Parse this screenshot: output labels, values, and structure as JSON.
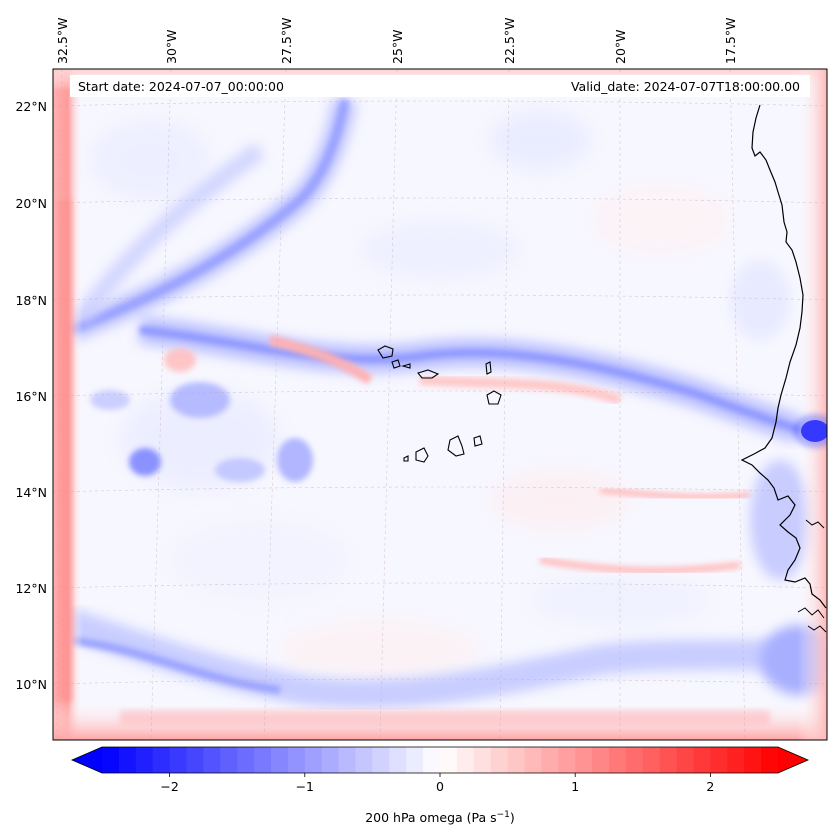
{
  "map": {
    "start_date": "Start date: 2024-07-07_00:00:00",
    "valid_date": "Valid_date: 2024-07-07T18:00:00.00",
    "lon_labels": [
      "32.5°W",
      "30°W",
      "27.5°W",
      "25°W",
      "22.5°W",
      "20°W",
      "17.5°W"
    ],
    "lat_labels": [
      "22°N",
      "20°N",
      "18°N",
      "16°N",
      "14°N",
      "12°N",
      "10°N"
    ]
  },
  "colorbar": {
    "label": "200 hPa omega (Pa s",
    "label_exp": "−1",
    "label_close": ")",
    "ticks": [
      "−2",
      "−1",
      "0",
      "1",
      "2"
    ],
    "tick_values": [
      -2,
      -1,
      0,
      1,
      2
    ],
    "range": [
      -2.5,
      2.5
    ],
    "colors": {
      "neg": "#0000ff",
      "mid": "#ffffff",
      "pos": "#ff0000"
    }
  }
}
